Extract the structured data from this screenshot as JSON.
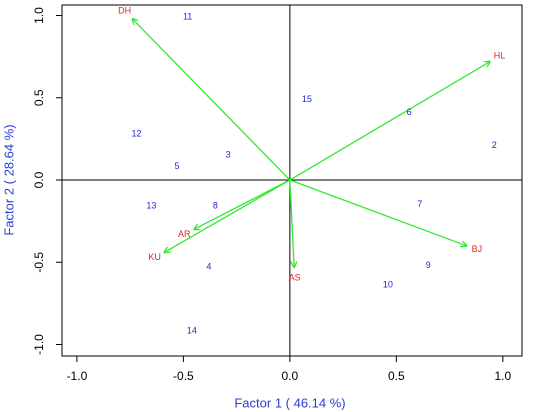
{
  "chart_data": {
    "type": "biplot",
    "x_label": "Factor 1 ( 46.14 %)",
    "y_label": "Factor 2 ( 28.64 %)",
    "axis_title_color": "#2a3fd6",
    "xlim": [
      -1.07,
      1.09
    ],
    "ylim": [
      -1.07,
      1.064
    ],
    "xticks": [
      {
        "value": -1,
        "label": "-1.0"
      },
      -0.5,
      {
        "value": 0,
        "label": "0.0"
      },
      0.5,
      {
        "value": 1,
        "label": "1.0"
      }
    ],
    "yticks": [
      {
        "value": -1,
        "label": "-1.0"
      },
      -0.5,
      {
        "value": 0,
        "label": "0.0"
      },
      0.5,
      {
        "value": 1,
        "label": "1.0"
      }
    ],
    "points": {
      "color": "#2424dc",
      "labels": [
        "11",
        "15",
        "6",
        "2",
        "12",
        "3",
        "5",
        "13",
        "8",
        "7",
        "4",
        "9",
        "10",
        "14"
      ],
      "x": [
        -0.48,
        0.08,
        0.56,
        0.96,
        -0.72,
        -0.29,
        -0.53,
        -0.65,
        -0.35,
        0.61,
        -0.38,
        0.65,
        0.46,
        -0.46
      ],
      "y": [
        0.99,
        0.49,
        0.41,
        0.21,
        0.28,
        0.15,
        0.08,
        -0.16,
        -0.16,
        -0.15,
        -0.53,
        -0.52,
        -0.64,
        -0.92
      ]
    },
    "loadings": {
      "color": "#33e833",
      "label_color": "#e02424",
      "labels": [
        "DH",
        "HL",
        "BJ",
        "AS",
        "AR",
        "KU"
      ],
      "x": [
        -0.74,
        0.94,
        0.83,
        0.02,
        -0.45,
        -0.59
      ],
      "y": [
        0.98,
        0.72,
        -0.4,
        -0.53,
        -0.3,
        -0.44
      ]
    }
  }
}
